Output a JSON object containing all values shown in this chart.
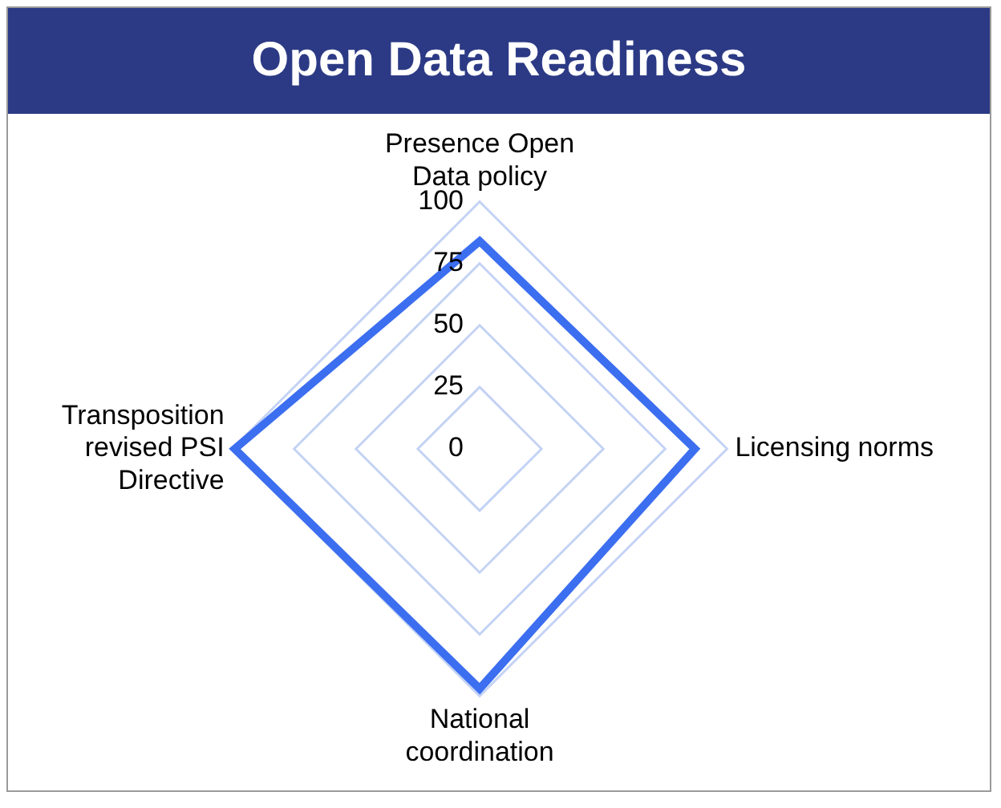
{
  "chart_data": {
    "type": "radar",
    "title": "Open Data Readiness",
    "categories": [
      "Presence Open Data policy",
      "Licensing norms",
      "National coordination",
      "Transposition revised PSI Directive"
    ],
    "series": [
      {
        "color": "#3c6ef0",
        "values": [
          84,
          87,
          97,
          99
        ]
      }
    ],
    "ylim": [
      0,
      100
    ],
    "yticks": [
      0,
      25,
      50,
      75,
      100
    ],
    "grid": true,
    "legend": false,
    "marker": "none"
  }
}
